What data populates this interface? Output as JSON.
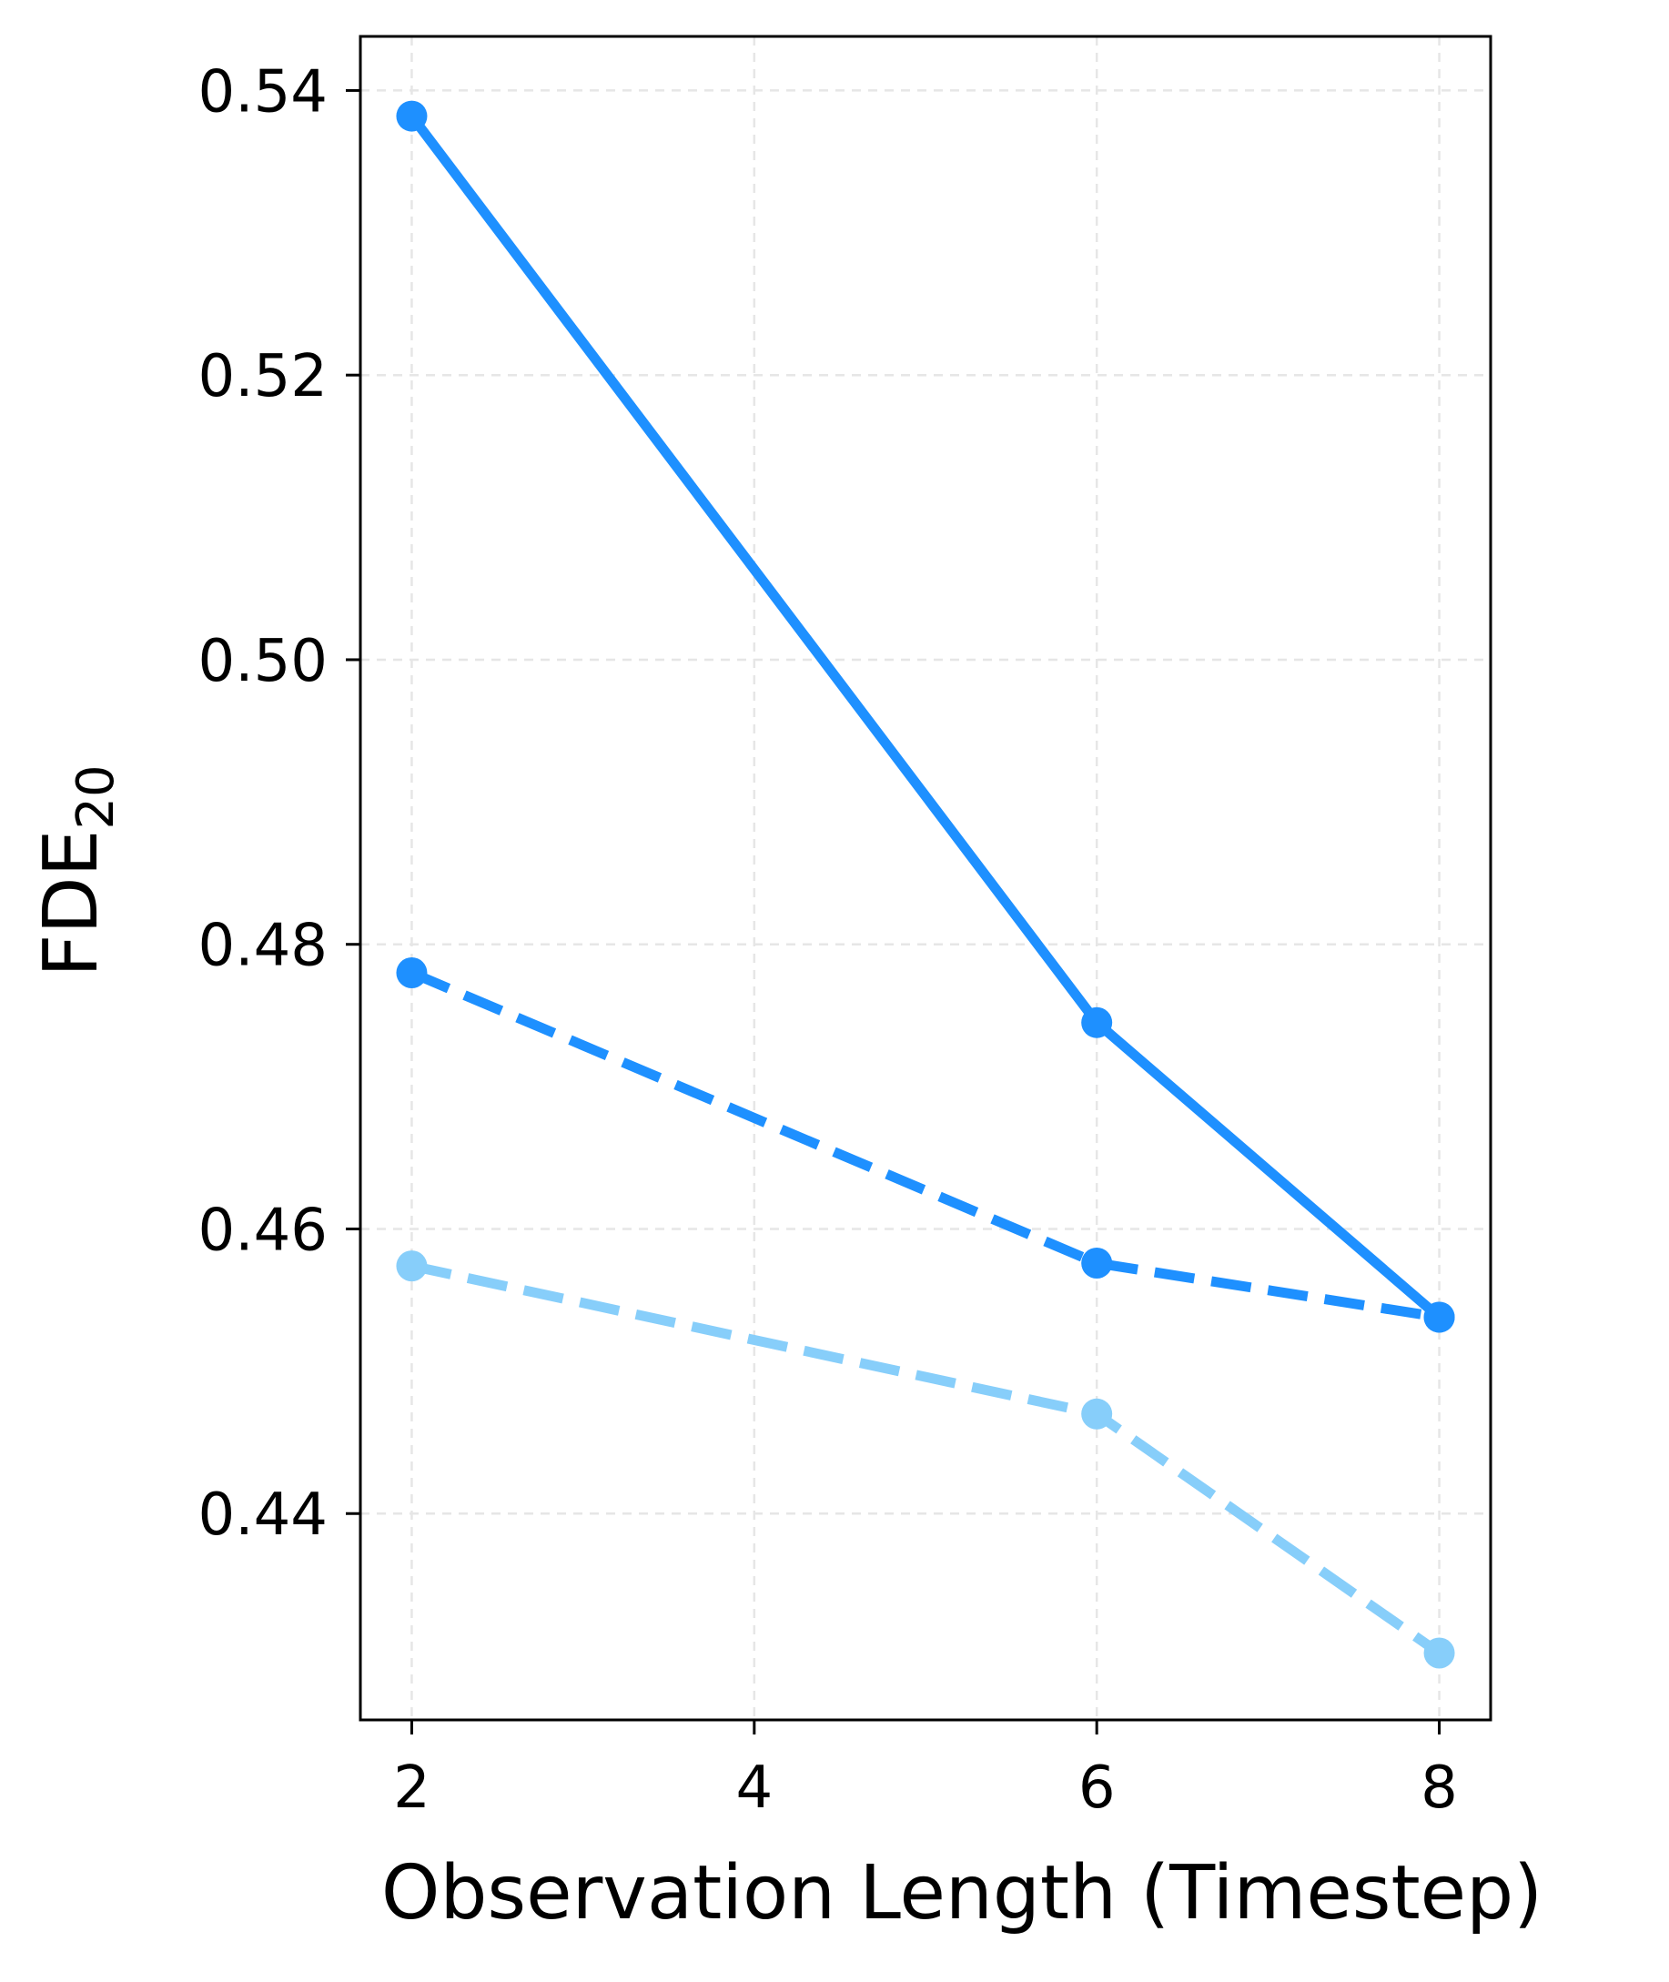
{
  "chart_data": {
    "type": "line",
    "title": "",
    "xlabel": "Observation Length (Timestep)",
    "ylabel": {
      "main": "FDE",
      "sub": "20"
    },
    "x": [
      2,
      6,
      8
    ],
    "xlim": [
      1.7,
      8.3
    ],
    "ylim": [
      0.4255,
      0.5438
    ],
    "xticks": [
      2,
      4,
      6,
      8
    ],
    "yticks": [
      0.44,
      0.46,
      0.48,
      0.5,
      0.52,
      0.54
    ],
    "ytick_labels": [
      "0.44",
      "0.46",
      "0.48",
      "0.50",
      "0.52",
      "0.54"
    ],
    "grid": true,
    "legend": "none",
    "series": [
      {
        "values": [
          0.5382,
          0.4745,
          0.4538
        ],
        "color": "#1e90ff",
        "style": "solid"
      },
      {
        "values": [
          0.478,
          0.4576,
          0.4538
        ],
        "color": "#1e90ff",
        "style": "dashed"
      },
      {
        "values": [
          0.4574,
          0.447,
          0.4302
        ],
        "color": "#87cefa",
        "style": "dashed"
      }
    ]
  }
}
